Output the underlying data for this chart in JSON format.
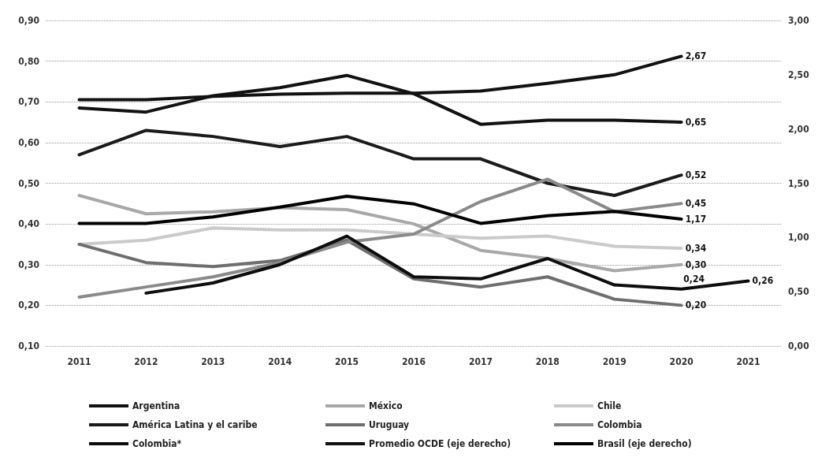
{
  "chart_data": {
    "type": "line",
    "categories": [
      "2011",
      "2012",
      "2013",
      "2014",
      "2015",
      "2016",
      "2017",
      "2018",
      "2019",
      "2020",
      "2021"
    ],
    "series": [
      {
        "name": "Argentina",
        "color": "#111111",
        "values": [
          0.685,
          0.675,
          0.715,
          0.735,
          0.765,
          0.72,
          0.645,
          0.655,
          0.655,
          0.65,
          null
        ],
        "value_labels": [
          null,
          null,
          null,
          null,
          null,
          null,
          null,
          null,
          null,
          "0,65",
          null
        ]
      },
      {
        "name": "México",
        "color": "#a8a8a8",
        "values": [
          0.47,
          0.425,
          0.43,
          0.44,
          0.435,
          0.4,
          0.335,
          0.315,
          0.285,
          0.3,
          null
        ],
        "value_labels": [
          null,
          null,
          null,
          null,
          null,
          null,
          null,
          null,
          null,
          "0,30",
          null
        ]
      },
      {
        "name": "Chile",
        "color": "#cacaca",
        "values": [
          0.35,
          0.36,
          0.39,
          0.385,
          0.385,
          0.375,
          0.365,
          0.37,
          0.345,
          0.34,
          null
        ],
        "value_labels": [
          null,
          null,
          null,
          null,
          null,
          null,
          null,
          null,
          null,
          "0,34",
          null
        ]
      },
      {
        "name": "América Latina y el caribe",
        "color": "#1a1a1a",
        "values": [
          0.57,
          0.63,
          0.615,
          0.59,
          0.615,
          0.56,
          0.56,
          0.5,
          0.47,
          0.52,
          null
        ],
        "value_labels": [
          null,
          null,
          null,
          null,
          null,
          null,
          null,
          null,
          null,
          "0,52",
          null
        ]
      },
      {
        "name": "Uruguay",
        "color": "#6e6e6e",
        "values": [
          0.35,
          0.305,
          0.295,
          0.31,
          0.36,
          0.265,
          0.245,
          0.27,
          0.215,
          0.2,
          null
        ],
        "value_labels": [
          null,
          null,
          null,
          null,
          null,
          null,
          null,
          null,
          null,
          "0,20",
          null
        ]
      },
      {
        "name": "Colombia",
        "color": "#8a8a8a",
        "values": [
          0.22,
          0.245,
          0.27,
          0.305,
          0.355,
          0.375,
          0.455,
          0.51,
          0.43,
          0.45,
          null
        ],
        "value_labels": [
          null,
          null,
          null,
          null,
          null,
          null,
          null,
          null,
          null,
          "0,45",
          null
        ]
      },
      {
        "name": "Colombia*",
        "color": "#0d0d0d",
        "values": [
          null,
          0.23,
          0.255,
          0.3,
          0.37,
          0.27,
          0.265,
          0.315,
          0.25,
          0.24,
          0.26
        ],
        "value_labels": [
          null,
          null,
          null,
          null,
          null,
          null,
          null,
          null,
          null,
          "0,24",
          "0,26"
        ]
      },
      {
        "name": "Promedio OCDE (eje derecho)",
        "color": "#111111",
        "axis": "y2",
        "values": [
          2.27,
          2.27,
          2.3,
          2.32,
          2.33,
          2.33,
          2.35,
          2.42,
          2.5,
          2.67,
          null
        ],
        "value_labels": [
          null,
          null,
          null,
          null,
          null,
          null,
          null,
          null,
          null,
          "2,67",
          null
        ]
      },
      {
        "name": "Brasil (eje derecho)",
        "color": "#000000",
        "axis": "y2",
        "values": [
          1.13,
          1.13,
          1.19,
          1.28,
          1.38,
          1.31,
          1.13,
          1.2,
          1.24,
          1.17,
          null
        ],
        "value_labels": [
          null,
          null,
          null,
          null,
          null,
          null,
          null,
          null,
          null,
          "1,17",
          null
        ]
      }
    ],
    "ylim": [
      0.1,
      0.9
    ],
    "yticks": [
      {
        "value": 0.1,
        "label": "0,10"
      },
      {
        "value": 0.2,
        "label": "0,20"
      },
      {
        "value": 0.3,
        "label": "0,30"
      },
      {
        "value": 0.4,
        "label": "0,40"
      },
      {
        "value": 0.5,
        "label": "0,50"
      },
      {
        "value": 0.6,
        "label": "0,60"
      },
      {
        "value": 0.7,
        "label": "0,70"
      },
      {
        "value": 0.8,
        "label": "0,80"
      },
      {
        "value": 0.9,
        "label": "0,90"
      }
    ],
    "y2lim": [
      0,
      3
    ],
    "y2ticks": [
      {
        "value": 0,
        "label": "0,00"
      },
      {
        "value": 0.5,
        "label": "0,50"
      },
      {
        "value": 1,
        "label": "1,00"
      },
      {
        "value": 1.5,
        "label": "1,50"
      },
      {
        "value": 2,
        "label": "2,00"
      },
      {
        "value": 2.5,
        "label": "2,50"
      },
      {
        "value": 3,
        "label": "3,00"
      }
    ],
    "grid": "y",
    "legend": "bottom",
    "marker": "none",
    "line_style": "solid"
  }
}
